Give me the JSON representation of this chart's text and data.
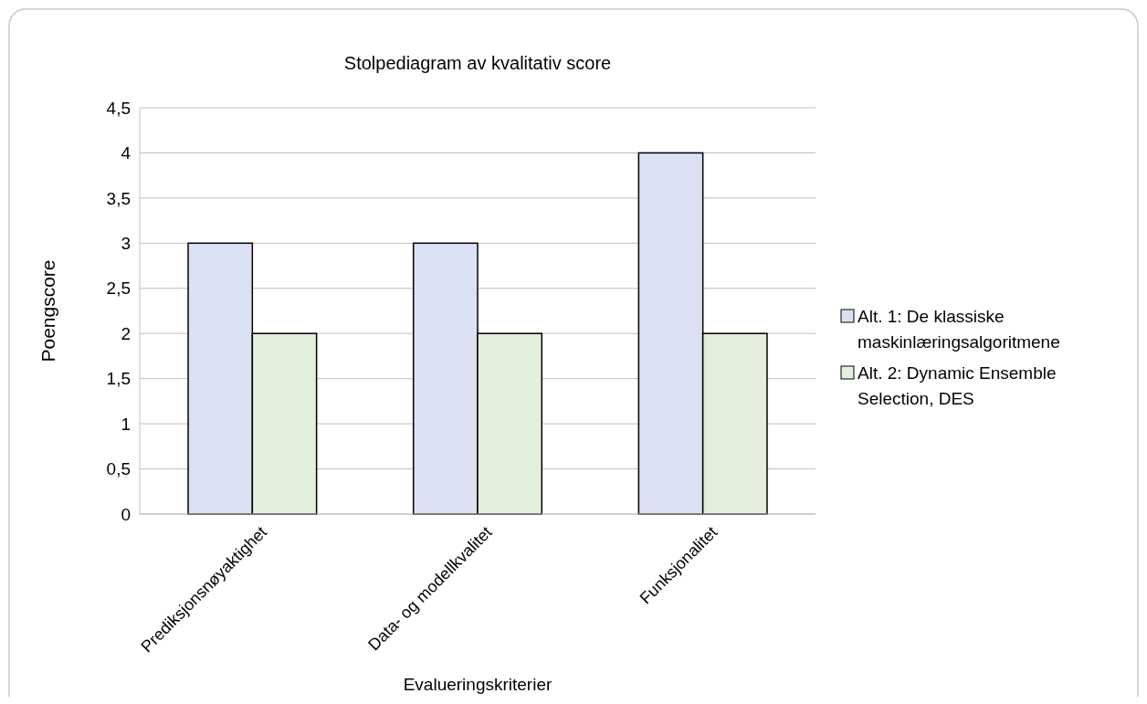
{
  "chart_data": {
    "type": "bar",
    "title": "Stolpediagram av kvalitativ score",
    "xlabel": "Evalueringskriterier",
    "ylabel": "Poengscore",
    "categories": [
      "Prediksjonsnøyaktighet",
      "Data- og modellkvalitet",
      "Funksjonalitet"
    ],
    "series": [
      {
        "name": "Alt. 1: De klassiske maskinlæringsalgoritmene",
        "color": "#d9e1f2",
        "values": [
          3,
          3,
          4
        ]
      },
      {
        "name": "Alt. 2: Dynamic Ensemble Selection, DES",
        "color": "#e2efda",
        "values": [
          2,
          2,
          2
        ]
      }
    ],
    "ylim": [
      0,
      4.5
    ],
    "yticks": [
      0,
      {
        "value": 0.5,
        "label": "0,5"
      },
      1,
      {
        "value": 1.5,
        "label": "1,5"
      },
      2,
      {
        "value": 2.5,
        "label": "2,5"
      },
      3,
      {
        "value": 3.5,
        "label": "3,5"
      },
      4,
      {
        "value": 4.5,
        "label": "4,5"
      }
    ],
    "grid": "y",
    "legend": "right"
  }
}
